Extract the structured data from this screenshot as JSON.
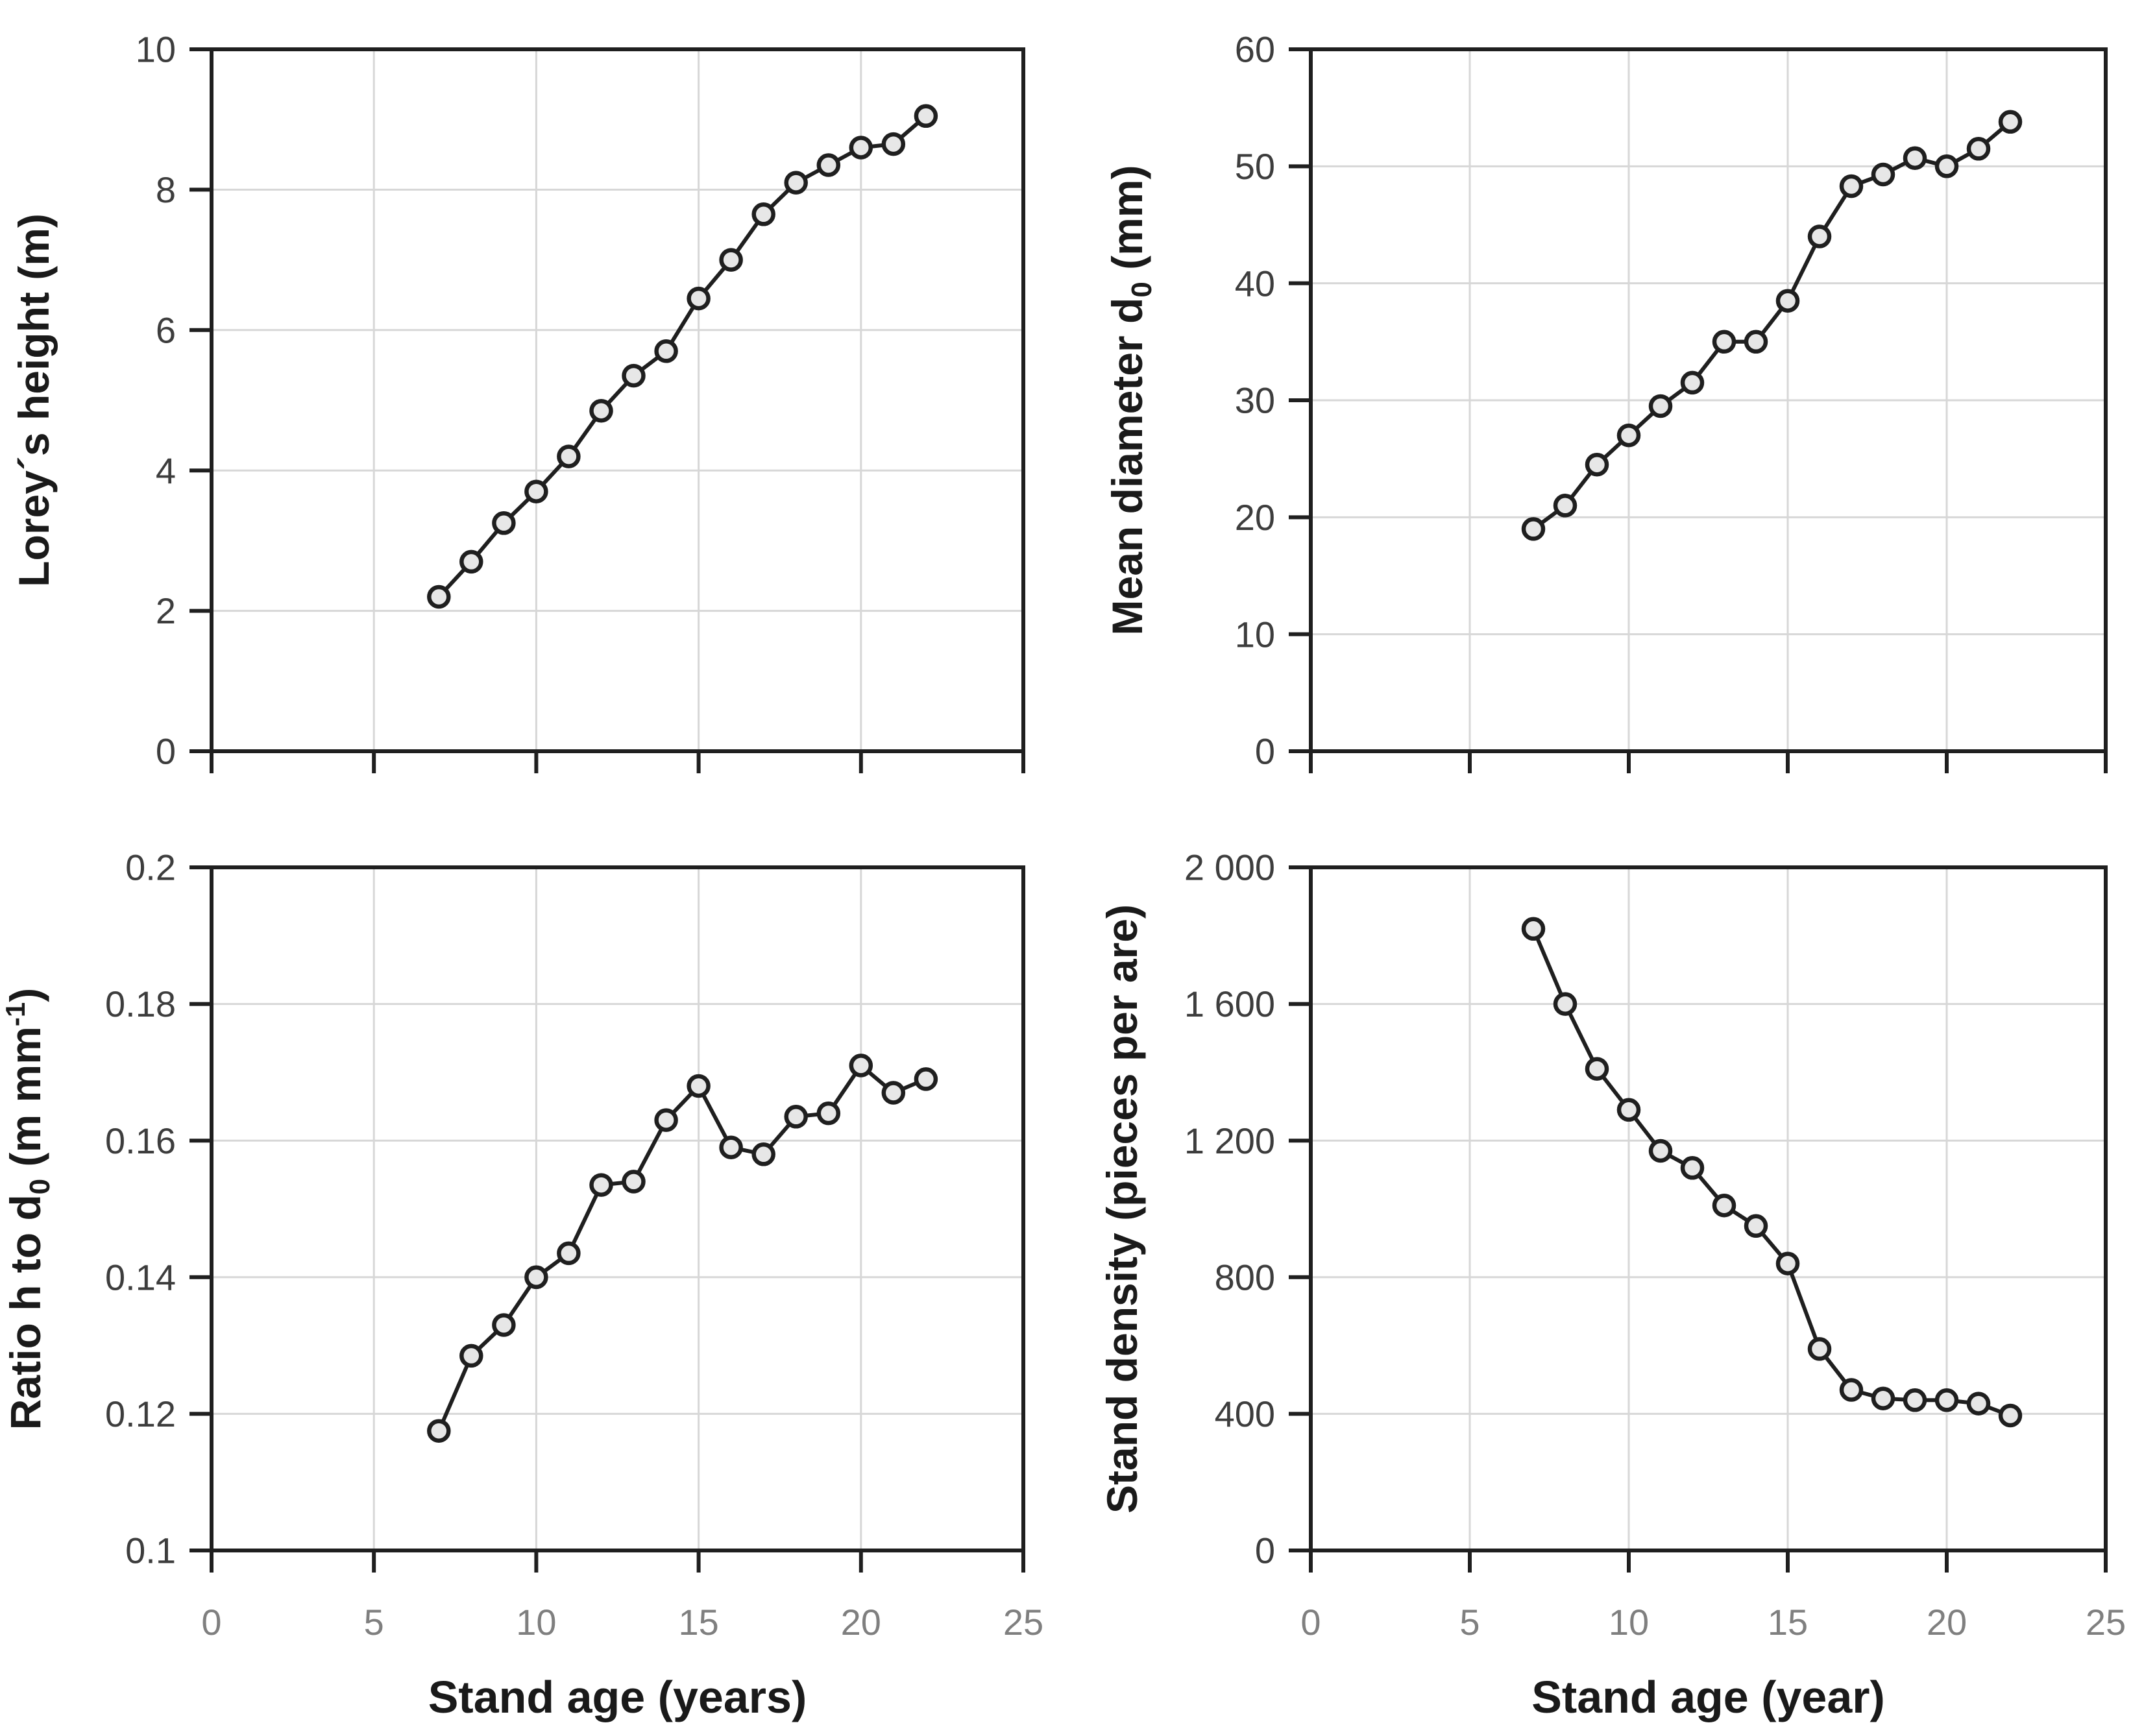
{
  "figure": {
    "description": "2x2 panel of forestry stand growth scatter-line charts",
    "background": "#ffffff",
    "colors": {
      "frame": "#1f1f1f",
      "gridline": "#d7d7d7",
      "line": "#1f1f1f",
      "marker_fill": "#e7e7e7",
      "marker_stroke": "#1f1f1f",
      "y_tick_label": "#3d3d3d",
      "x_tick_label": "#7f7f7f",
      "axis_title": "#1a1a1a"
    }
  },
  "chart_data": [
    {
      "id": "loreys-height",
      "type": "line",
      "title": "",
      "ylabel": "Lorey´s height (m)",
      "ylabel_segments": [
        {
          "t": "Lorey´s height (m)"
        }
      ],
      "xlabel": "",
      "x": [
        7,
        8,
        9,
        10,
        11,
        12,
        13,
        14,
        15,
        16,
        17,
        18,
        19,
        20,
        21,
        22
      ],
      "y": [
        2.2,
        2.7,
        3.25,
        3.7,
        4.2,
        4.85,
        5.35,
        5.7,
        6.45,
        7.0,
        7.65,
        8.1,
        8.35,
        8.6,
        8.65,
        9.05
      ],
      "xlim": [
        0,
        25
      ],
      "ylim": [
        0,
        10
      ],
      "xticks": [
        0,
        5,
        10,
        15,
        20,
        25
      ],
      "xtick_labels": [],
      "yticks": [
        0,
        2,
        4,
        6,
        8,
        10
      ],
      "ytick_labels": [
        "0",
        "2",
        "4",
        "6",
        "8",
        "10"
      ],
      "grid": true,
      "legend": "none",
      "marker": "circle"
    },
    {
      "id": "mean-diameter",
      "type": "line",
      "title": "",
      "ylabel": "Mean diameter d0 (mm)",
      "ylabel_segments": [
        {
          "t": "Mean diameter d"
        },
        {
          "t": "0",
          "sub": true
        },
        {
          "t": " (mm)"
        }
      ],
      "xlabel": "",
      "x": [
        7,
        8,
        9,
        10,
        11,
        12,
        13,
        14,
        15,
        16,
        17,
        18,
        19,
        20,
        21,
        22
      ],
      "y": [
        19,
        21,
        24.5,
        27,
        29.5,
        31.5,
        35,
        35,
        38.5,
        44,
        48.3,
        49.3,
        50.7,
        50,
        51.5,
        53.8
      ],
      "xlim": [
        0,
        25
      ],
      "ylim": [
        0,
        60
      ],
      "xticks": [
        0,
        5,
        10,
        15,
        20,
        25
      ],
      "xtick_labels": [],
      "yticks": [
        0,
        10,
        20,
        30,
        40,
        50,
        60
      ],
      "ytick_labels": [
        "0",
        "10",
        "20",
        "30",
        "40",
        "50",
        "60"
      ],
      "grid": true,
      "legend": "none",
      "marker": "circle"
    },
    {
      "id": "height-diameter-ratio",
      "type": "line",
      "title": "",
      "ylabel": "Ratio h to d0 (m mm-1)",
      "ylabel_segments": [
        {
          "t": "Ratio h to d"
        },
        {
          "t": "0",
          "sub": true
        },
        {
          "t": " (m mm"
        },
        {
          "t": "-1",
          "sup": true
        },
        {
          "t": ")"
        }
      ],
      "xlabel": "Stand age (years)",
      "x": [
        7,
        8,
        9,
        10,
        11,
        12,
        13,
        14,
        15,
        16,
        17,
        18,
        19,
        20,
        21,
        22
      ],
      "y": [
        0.1175,
        0.1285,
        0.133,
        0.14,
        0.1435,
        0.1535,
        0.154,
        0.163,
        0.168,
        0.159,
        0.158,
        0.1635,
        0.164,
        0.171,
        0.167,
        0.169
      ],
      "xlim": [
        0,
        25
      ],
      "ylim": [
        0.1,
        0.2
      ],
      "xticks": [
        0,
        5,
        10,
        15,
        20,
        25
      ],
      "xtick_labels": [
        "0",
        "5",
        "10",
        "15",
        "20",
        "25"
      ],
      "yticks": [
        0.1,
        0.12,
        0.14,
        0.16,
        0.18,
        0.2
      ],
      "ytick_labels": [
        "0.1",
        "0.12",
        "0.14",
        "0.16",
        "0.18",
        "0.2"
      ],
      "grid": true,
      "legend": "none",
      "marker": "circle"
    },
    {
      "id": "stand-density",
      "type": "line",
      "title": "",
      "ylabel": "Stand density (pieces per are)",
      "ylabel_segments": [
        {
          "t": "Stand density (pieces per are)"
        }
      ],
      "xlabel": "Stand age (year)",
      "x": [
        7,
        8,
        9,
        10,
        11,
        12,
        13,
        14,
        15,
        16,
        17,
        18,
        19,
        20,
        21,
        22
      ],
      "y": [
        1820,
        1600,
        1410,
        1290,
        1170,
        1120,
        1010,
        950,
        840,
        590,
        470,
        445,
        440,
        440,
        430,
        395
      ],
      "xlim": [
        0,
        25
      ],
      "ylim": [
        0,
        2000
      ],
      "xticks": [
        0,
        5,
        10,
        15,
        20,
        25
      ],
      "xtick_labels": [
        "0",
        "5",
        "10",
        "15",
        "20",
        "25"
      ],
      "yticks": [
        0,
        400,
        800,
        1200,
        1600,
        2000
      ],
      "ytick_labels": [
        "0",
        "400",
        "800",
        "1 200",
        "1 600",
        "2 000"
      ],
      "grid": true,
      "legend": "none",
      "marker": "circle"
    }
  ]
}
